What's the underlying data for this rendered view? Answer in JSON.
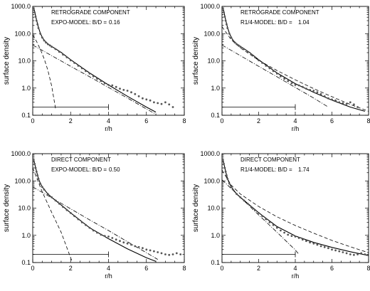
{
  "chart_data": [
    {
      "type": "line",
      "title": "RETROGRADE COMPONENT",
      "model_label": "EXPO-MODEL: B/D = ",
      "bd_value": "0.16",
      "xlabel": "r/h",
      "ylabel": "surface density",
      "xlim": [
        0,
        8
      ],
      "ylim": [
        0.1,
        1000
      ],
      "yscale": "log",
      "xticks": [
        "0",
        "2",
        "4",
        "6",
        "8"
      ],
      "yticks": [
        "0.1",
        "1.0",
        "10.0",
        "100.0",
        "1000.0"
      ],
      "grid": false,
      "scale_bar": {
        "x": [
          0,
          4
        ],
        "y": 0.2
      },
      "points": {
        "x": [
          0.05,
          0.1,
          0.15,
          0.2,
          0.25,
          0.3,
          0.4,
          0.5,
          0.6,
          0.7,
          0.8,
          0.9,
          1.0,
          1.2,
          1.4,
          1.6,
          1.8,
          2.0,
          2.2,
          2.4,
          2.6,
          2.8,
          3.0,
          3.2,
          3.4,
          3.6,
          3.8,
          4.0,
          4.2,
          4.4,
          4.6,
          4.8,
          5.0,
          5.2,
          5.4,
          5.6,
          5.8,
          6.0,
          6.2,
          6.4,
          6.6,
          6.8,
          7.0,
          7.2,
          7.4
        ],
        "y": [
          850,
          600,
          420,
          300,
          220,
          160,
          100,
          72,
          56,
          47,
          41,
          37,
          33,
          27,
          21.5,
          17,
          13.5,
          10.5,
          8.4,
          6.6,
          5.3,
          4.2,
          3.4,
          2.7,
          2.2,
          1.8,
          1.5,
          1.3,
          1.25,
          1.1,
          0.95,
          0.85,
          0.8,
          0.7,
          0.6,
          0.5,
          0.42,
          0.38,
          0.35,
          0.3,
          0.28,
          0.26,
          0.3,
          0.25,
          0.2
        ]
      },
      "fits": [
        {
          "style": "solid",
          "x": [
            0.05,
            0.1,
            0.2,
            0.3,
            0.4,
            0.5,
            0.6,
            0.8,
            1.0,
            1.5,
            2.0,
            3.0,
            4.0,
            5.0,
            6.0,
            6.5
          ],
          "y": [
            900,
            650,
            320,
            170,
            105,
            74,
            57,
            42,
            34,
            20.5,
            11,
            3.6,
            1.3,
            0.5,
            0.2,
            0.13
          ]
        },
        {
          "style": "dashed",
          "x": [
            0,
            0.2,
            0.4,
            0.6,
            0.8,
            1.0,
            1.2
          ],
          "y": [
            90,
            52,
            27,
            12,
            4.5,
            1.2,
            0.18
          ]
        },
        {
          "style": "dashdot",
          "x": [
            0,
            1,
            2,
            3,
            4,
            5,
            6,
            6.5
          ],
          "y": [
            38,
            15.5,
            6.3,
            2.6,
            1.05,
            0.43,
            0.17,
            0.11
          ]
        }
      ]
    },
    {
      "type": "line",
      "title": "RETROGRADE COMPONENT",
      "model_label": "R1/4-MODEL: B/D = ",
      "bd_value": "1.04",
      "xlabel": "r/h",
      "ylabel": "surface density",
      "xlim": [
        0,
        8
      ],
      "ylim": [
        0.1,
        1000
      ],
      "yscale": "log",
      "xticks": [
        "0",
        "2",
        "4",
        "6",
        "8"
      ],
      "yticks": [
        "0.1",
        "1.0",
        "10.0",
        "100.0",
        "1000.0"
      ],
      "grid": false,
      "scale_bar": {
        "x": [
          0,
          4
        ],
        "y": 0.2
      },
      "points": {
        "x": [
          0.05,
          0.1,
          0.15,
          0.2,
          0.25,
          0.3,
          0.4,
          0.5,
          0.6,
          0.7,
          0.8,
          0.9,
          1.0,
          1.2,
          1.4,
          1.6,
          1.8,
          2.0,
          2.2,
          2.4,
          2.6,
          2.8,
          3.0,
          3.2,
          3.4,
          3.6,
          3.8,
          4.0,
          4.2,
          4.4,
          4.6,
          4.8,
          5.0,
          5.2,
          5.4,
          5.6,
          5.8,
          6.0,
          6.2,
          6.4,
          6.6,
          6.8,
          7.0,
          7.2,
          7.4
        ],
        "y": [
          850,
          600,
          420,
          300,
          220,
          160,
          100,
          72,
          56,
          47,
          41,
          37,
          33,
          27,
          21.5,
          17,
          13.5,
          10.5,
          8.4,
          6.6,
          5.3,
          4.2,
          3.4,
          2.7,
          2.2,
          1.8,
          1.5,
          1.3,
          1.25,
          1.1,
          0.95,
          0.85,
          0.8,
          0.7,
          0.6,
          0.5,
          0.42,
          0.38,
          0.35,
          0.3,
          0.28,
          0.26,
          0.3,
          0.25,
          0.2
        ]
      },
      "fits": [
        {
          "style": "solid",
          "x": [
            0.05,
            0.1,
            0.2,
            0.3,
            0.4,
            0.5,
            0.6,
            0.8,
            1.0,
            1.5,
            2.0,
            3.0,
            4.0,
            5.0,
            6.0,
            7.0,
            7.8
          ],
          "y": [
            900,
            650,
            320,
            170,
            105,
            74,
            57,
            42,
            34,
            20.5,
            11,
            3.6,
            1.45,
            0.7,
            0.36,
            0.2,
            0.14
          ]
        },
        {
          "style": "dashed",
          "x": [
            0,
            0.5,
            1,
            2,
            3,
            4,
            5,
            6,
            7,
            8
          ],
          "y": [
            180,
            60,
            30,
            10.5,
            4.4,
            2.0,
            0.95,
            0.48,
            0.25,
            0.14
          ]
        },
        {
          "style": "dashdot",
          "x": [
            0,
            1,
            2,
            3,
            4,
            5,
            5.8
          ],
          "y": [
            38,
            15.5,
            6.3,
            2.6,
            1.05,
            0.43,
            0.2
          ]
        }
      ]
    },
    {
      "type": "line",
      "title": "DIRECT COMPONENT",
      "model_label": "EXPO-MODEL: B/D = ",
      "bd_value": "0.50",
      "xlabel": "r/h",
      "ylabel": "surface density",
      "xlim": [
        0,
        8
      ],
      "ylim": [
        0.1,
        1000
      ],
      "yscale": "log",
      "xticks": [
        "0",
        "2",
        "4",
        "6",
        "8"
      ],
      "yticks": [
        "0.1",
        "1.0",
        "10.0",
        "100.0",
        "1000.0"
      ],
      "grid": false,
      "scale_bar": {
        "x": [
          0,
          4
        ],
        "y": 0.2
      },
      "points": {
        "x": [
          0.05,
          0.1,
          0.15,
          0.2,
          0.25,
          0.3,
          0.4,
          0.5,
          0.6,
          0.8,
          1.0,
          1.2,
          1.4,
          1.6,
          1.8,
          2.0,
          2.2,
          2.4,
          2.6,
          2.8,
          3.0,
          3.2,
          3.4,
          3.6,
          3.8,
          4.0,
          4.2,
          4.4,
          4.6,
          4.8,
          5.0,
          5.2,
          5.4,
          5.6,
          5.8,
          6.0,
          6.2,
          6.4,
          6.6,
          6.8,
          7.0,
          7.2,
          7.4,
          7.6,
          7.8
        ],
        "y": [
          600,
          420,
          300,
          220,
          160,
          120,
          80,
          60,
          48,
          33,
          25,
          19,
          14.5,
          11,
          8.5,
          6.6,
          5.1,
          3.9,
          3.0,
          2.4,
          1.9,
          1.5,
          1.25,
          1.05,
          0.95,
          0.9,
          0.8,
          0.7,
          0.62,
          0.55,
          0.5,
          0.45,
          0.4,
          0.37,
          0.34,
          0.3,
          0.28,
          0.26,
          0.24,
          0.22,
          0.2,
          0.19,
          0.2,
          0.22,
          0.2
        ]
      },
      "fits": [
        {
          "style": "solid",
          "x": [
            0.05,
            0.1,
            0.2,
            0.3,
            0.4,
            0.5,
            0.6,
            0.8,
            1.0,
            1.5,
            2.0,
            3.0,
            4.0,
            5.0,
            6.0,
            6.5
          ],
          "y": [
            620,
            430,
            225,
            122,
            82,
            61,
            49,
            33,
            25,
            13,
            6.7,
            1.9,
            0.75,
            0.32,
            0.15,
            0.11
          ]
        },
        {
          "style": "dashed",
          "x": [
            0,
            0.5,
            1.0,
            1.5,
            2.0,
            2.1
          ],
          "y": [
            300,
            40,
            7,
            1.3,
            0.15,
            0.1
          ]
        },
        {
          "style": "dashdot",
          "x": [
            0,
            1,
            2,
            3,
            4,
            5,
            6,
            6.6
          ],
          "y": [
            60,
            24,
            9.4,
            3.7,
            1.5,
            0.58,
            0.23,
            0.13
          ]
        }
      ]
    },
    {
      "type": "line",
      "title": "DIRECT COMPONENT",
      "model_label": "R1/4-MODEL: B/D = ",
      "bd_value": "1.74",
      "xlabel": "r/h",
      "ylabel": "surface density",
      "xlim": [
        0,
        8
      ],
      "ylim": [
        0.1,
        1000
      ],
      "yscale": "log",
      "xticks": [
        "0",
        "2",
        "4",
        "6",
        "8"
      ],
      "yticks": [
        "0.1",
        "1.0",
        "10.0",
        "100.0",
        "1000.0"
      ],
      "grid": false,
      "scale_bar": {
        "x": [
          0,
          4
        ],
        "y": 0.2
      },
      "points": {
        "x": [
          0.05,
          0.1,
          0.15,
          0.2,
          0.25,
          0.3,
          0.4,
          0.5,
          0.6,
          0.8,
          1.0,
          1.2,
          1.4,
          1.6,
          1.8,
          2.0,
          2.2,
          2.4,
          2.6,
          2.8,
          3.0,
          3.2,
          3.4,
          3.6,
          3.8,
          4.0,
          4.2,
          4.4,
          4.6,
          4.8,
          5.0,
          5.2,
          5.4,
          5.6,
          5.8,
          6.0,
          6.2,
          6.4,
          6.6,
          6.8,
          7.0,
          7.2,
          7.4,
          7.6,
          7.8
        ],
        "y": [
          600,
          420,
          300,
          220,
          160,
          120,
          80,
          60,
          48,
          33,
          25,
          19,
          14.5,
          11,
          8.5,
          6.6,
          5.1,
          3.9,
          3.0,
          2.4,
          1.9,
          1.5,
          1.25,
          1.05,
          0.95,
          0.9,
          0.8,
          0.7,
          0.62,
          0.55,
          0.5,
          0.45,
          0.4,
          0.37,
          0.34,
          0.3,
          0.28,
          0.26,
          0.24,
          0.22,
          0.2,
          0.19,
          0.2,
          0.22,
          0.2
        ]
      },
      "fits": [
        {
          "style": "solid",
          "x": [
            0.05,
            0.1,
            0.2,
            0.3,
            0.4,
            0.5,
            0.6,
            0.8,
            1.0,
            1.5,
            2.0,
            3.0,
            4.0,
            5.0,
            6.0,
            7.0,
            8.0
          ],
          "y": [
            620,
            430,
            225,
            122,
            82,
            61,
            49,
            33,
            25,
            13,
            6.8,
            2.1,
            0.95,
            0.55,
            0.36,
            0.25,
            0.18
          ]
        },
        {
          "style": "dashed",
          "x": [
            0,
            0.5,
            1,
            2,
            3,
            4,
            5,
            6,
            7,
            8
          ],
          "y": [
            250,
            70,
            33,
            11.5,
            4.8,
            2.3,
            1.2,
            0.65,
            0.38,
            0.23
          ]
        },
        {
          "style": "dashdot",
          "x": [
            0,
            1,
            2,
            3,
            4,
            4.2
          ],
          "y": [
            110,
            25,
            5.6,
            1.3,
            0.29,
            0.2
          ]
        }
      ]
    }
  ]
}
